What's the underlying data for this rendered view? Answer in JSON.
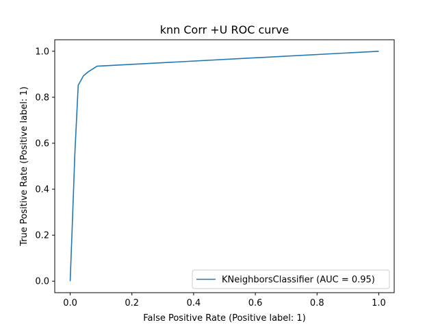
{
  "chart_data": {
    "type": "line",
    "title": "knn Corr +U ROC curve",
    "xlabel": "False Positive Rate (Positive label: 1)",
    "ylabel": "True Positive Rate (Positive label: 1)",
    "xlim": [
      -0.05,
      1.05
    ],
    "ylim": [
      -0.05,
      1.05
    ],
    "xticks": [
      0.0,
      0.2,
      0.4,
      0.6,
      0.8,
      1.0
    ],
    "yticks": [
      0.0,
      0.2,
      0.4,
      0.6,
      0.8,
      1.0
    ],
    "xtick_labels": [
      "0.0",
      "0.2",
      "0.4",
      "0.6",
      "0.8",
      "1.0"
    ],
    "ytick_labels": [
      "0.0",
      "0.2",
      "0.4",
      "0.6",
      "0.8",
      "1.0"
    ],
    "grid": false,
    "legend_position": "lower-right",
    "series": [
      {
        "name": "KNeighborsClassifier (AUC = 0.95)",
        "color": "#1f77b4",
        "x": [
          0.0,
          0.007,
          0.015,
          0.026,
          0.043,
          0.058,
          0.087,
          1.0
        ],
        "y": [
          0.0,
          0.25,
          0.55,
          0.852,
          0.893,
          0.91,
          0.935,
          1.0
        ]
      }
    ]
  }
}
